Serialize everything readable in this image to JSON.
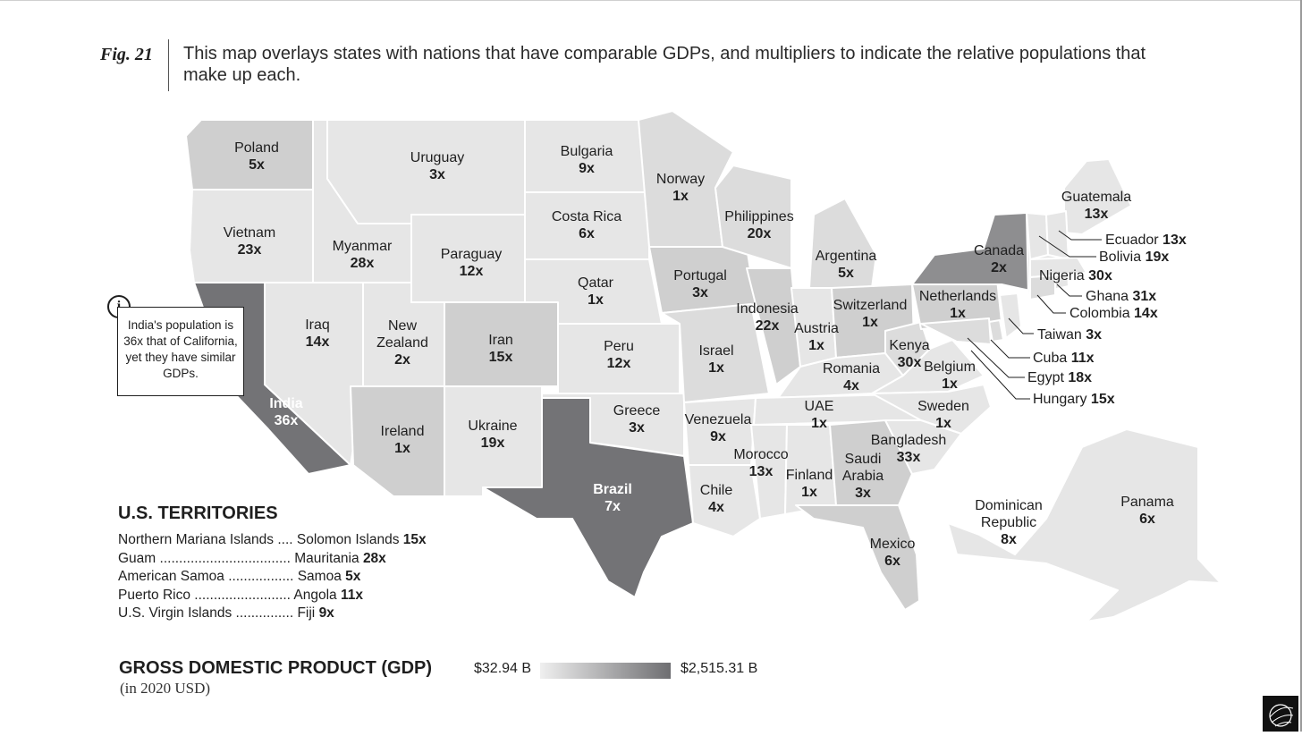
{
  "figure": {
    "label": "Fig. 21",
    "caption": "This map overlays states with nations that have comparable GDPs, and multipliers to indicate the relative populations that make up each."
  },
  "states": [
    {
      "name": "Poland",
      "mult": "5x",
      "shade": 3
    },
    {
      "name": "Vietnam",
      "mult": "23x",
      "shade": 1
    },
    {
      "name": "India",
      "mult": "36x",
      "shade": 6
    },
    {
      "name": "Iraq",
      "mult": "14x",
      "shade": 1
    },
    {
      "name": "Uruguay",
      "mult": "3x",
      "shade": 1
    },
    {
      "name": "Myanmar",
      "mult": "28x",
      "shade": 1
    },
    {
      "name": "New Zealand",
      "mult": "2x",
      "shade": 1
    },
    {
      "name": "Paraguay",
      "mult": "12x",
      "shade": 1
    },
    {
      "name": "Iran",
      "mult": "15x",
      "shade": 3
    },
    {
      "name": "Ireland",
      "mult": "1x",
      "shade": 3
    },
    {
      "name": "Ukraine",
      "mult": "19x",
      "shade": 1
    },
    {
      "name": "Bulgaria",
      "mult": "9x",
      "shade": 1
    },
    {
      "name": "Costa Rica",
      "mult": "6x",
      "shade": 1
    },
    {
      "name": "Qatar",
      "mult": "1x",
      "shade": 1
    },
    {
      "name": "Peru",
      "mult": "12x",
      "shade": 1
    },
    {
      "name": "Greece",
      "mult": "3x",
      "shade": 1
    },
    {
      "name": "Brazil",
      "mult": "7x",
      "shade": 6
    },
    {
      "name": "Norway",
      "mult": "1x",
      "shade": 2
    },
    {
      "name": "Portugal",
      "mult": "3x",
      "shade": 3
    },
    {
      "name": "Israel",
      "mult": "1x",
      "shade": 2
    },
    {
      "name": "Venezuela",
      "mult": "9x",
      "shade": 1
    },
    {
      "name": "Chile",
      "mult": "4x",
      "shade": 1
    },
    {
      "name": "Philippines",
      "mult": "20x",
      "shade": 2
    },
    {
      "name": "Indonesia",
      "mult": "22x",
      "shade": 3
    },
    {
      "name": "Argentina",
      "mult": "5x",
      "shade": 2
    },
    {
      "name": "Austria",
      "mult": "1x",
      "shade": 1
    },
    {
      "name": "Switzerland",
      "mult": "1x",
      "shade": 3
    },
    {
      "name": "Romania",
      "mult": "4x",
      "shade": 1
    },
    {
      "name": "UAE",
      "mult": "1x",
      "shade": 1
    },
    {
      "name": "Morocco",
      "mult": "13x",
      "shade": 1
    },
    {
      "name": "Finland",
      "mult": "1x",
      "shade": 1
    },
    {
      "name": "Saudi Arabia",
      "mult": "3x",
      "shade": 3
    },
    {
      "name": "Mexico",
      "mult": "6x",
      "shade": 3
    },
    {
      "name": "Kenya",
      "mult": "30x",
      "shade": 2
    },
    {
      "name": "Belgium",
      "mult": "1x",
      "shade": 1
    },
    {
      "name": "Sweden",
      "mult": "1x",
      "shade": 1
    },
    {
      "name": "Bangladesh",
      "mult": "33x",
      "shade": 1
    },
    {
      "name": "Netherlands",
      "mult": "1x",
      "shade": 3
    },
    {
      "name": "Canada",
      "mult": "2x",
      "shade": 5
    },
    {
      "name": "Guatemala",
      "mult": "13x",
      "shade": 1
    },
    {
      "name": "Dominican Republic",
      "mult": "8x",
      "shade": 1
    },
    {
      "name": "Panama",
      "mult": "6x",
      "shade": 1
    }
  ],
  "callouts": [
    {
      "name": "Ecuador",
      "mult": "13x"
    },
    {
      "name": "Bolivia",
      "mult": "19x"
    },
    {
      "name": "Nigeria",
      "mult": "30x"
    },
    {
      "name": "Ghana",
      "mult": "31x"
    },
    {
      "name": "Colombia",
      "mult": "14x"
    },
    {
      "name": "Taiwan",
      "mult": "3x"
    },
    {
      "name": "Cuba",
      "mult": "11x"
    },
    {
      "name": "Egypt",
      "mult": "18x"
    },
    {
      "name": "Hungary",
      "mult": "15x"
    }
  ],
  "info": {
    "icon": "info-icon",
    "text": "India's population is 36x that of California, yet they have similar GDPs."
  },
  "territories": {
    "title": "U.S. TERRITORIES",
    "items": [
      {
        "territory": "Northern Mariana Islands",
        "dots": " .... ",
        "country": "Solomon Islands",
        "mult": "15x"
      },
      {
        "territory": "Guam",
        "dots": " .................................. ",
        "country": "Mauritania",
        "mult": "28x"
      },
      {
        "territory": "American Samoa",
        "dots": " ................. ",
        "country": "Samoa",
        "mult": "5x"
      },
      {
        "territory": "Puerto Rico",
        "dots": " ......................... ",
        "country": "Angola",
        "mult": "11x"
      },
      {
        "territory": "U.S. Virgin Islands",
        "dots": " ............... ",
        "country": "Fiji",
        "mult": "9x"
      }
    ]
  },
  "legend": {
    "title": "GROSS DOMESTIC PRODUCT (GDP)",
    "subtitle": "(in 2020 USD)",
    "min": "$32.94 B",
    "max": "$2,515.31 B",
    "color_min": "#efefef",
    "color_max": "#6e6e71"
  }
}
